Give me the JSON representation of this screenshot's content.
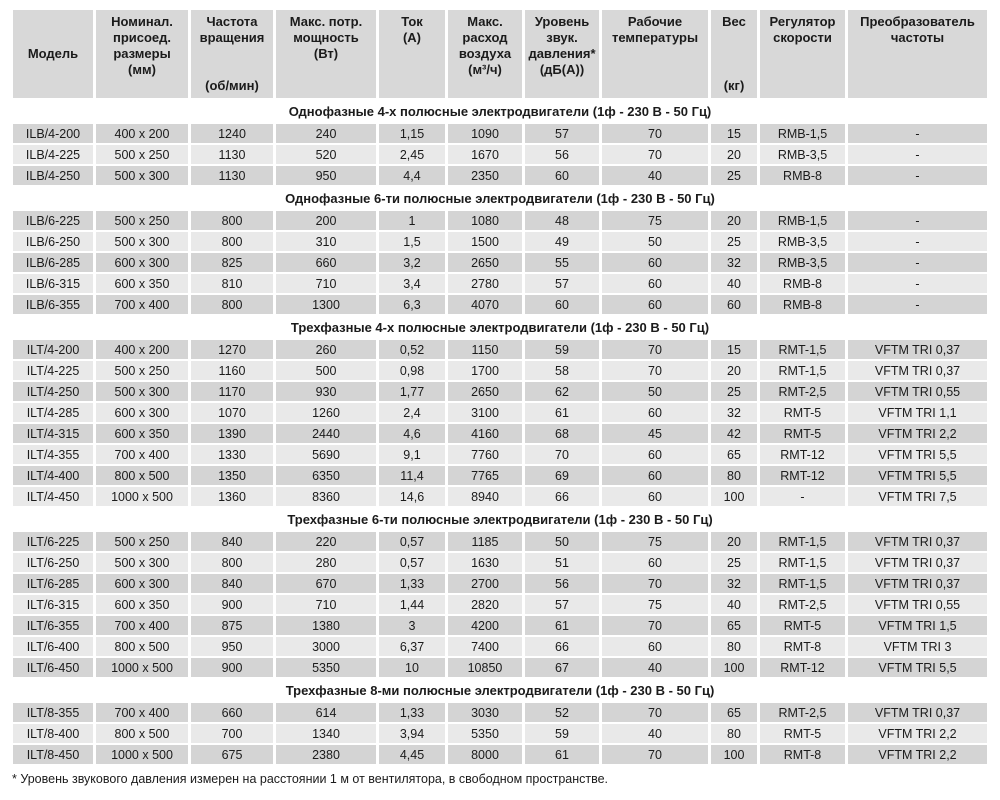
{
  "table": {
    "headers": [
      {
        "label": "Модель",
        "unit": ""
      },
      {
        "label": "Номинал. присоед. размеры",
        "unit": "(мм)"
      },
      {
        "label": "Частота вращения",
        "unit": "(об/мин)"
      },
      {
        "label": "Макс. потр. мощность",
        "unit": "(Вт)"
      },
      {
        "label": "Ток",
        "unit": "(А)"
      },
      {
        "label": "Макс. расход воздуха",
        "unit": "(м³/ч)"
      },
      {
        "label": "Уровень звук. давления*",
        "unit": "(дБ(А))"
      },
      {
        "label": "Рабочие температуры",
        "unit": ""
      },
      {
        "label": "Вес",
        "unit": "(кг)"
      },
      {
        "label": "Регулятор скорости",
        "unit": ""
      },
      {
        "label": "Преобразователь частоты",
        "unit": ""
      }
    ],
    "sections": [
      {
        "title": "Однофазные 4-х полюсные электродвигатели (1ф - 230 В - 50 Гц)",
        "rows": [
          [
            "ILB/4-200",
            "400 x 200",
            "1240",
            "240",
            "1,15",
            "1090",
            "57",
            "70",
            "15",
            "RMB-1,5",
            "-"
          ],
          [
            "ILB/4-225",
            "500 x 250",
            "1130",
            "520",
            "2,45",
            "1670",
            "56",
            "70",
            "20",
            "RMB-3,5",
            "-"
          ],
          [
            "ILB/4-250",
            "500 x 300",
            "1130",
            "950",
            "4,4",
            "2350",
            "60",
            "40",
            "25",
            "RMB-8",
            "-"
          ]
        ]
      },
      {
        "title": "Однофазные 6-ти полюсные электродвигатели (1ф - 230 В - 50 Гц)",
        "rows": [
          [
            "ILB/6-225",
            "500 x 250",
            "800",
            "200",
            "1",
            "1080",
            "48",
            "75",
            "20",
            "RMB-1,5",
            "-"
          ],
          [
            "ILB/6-250",
            "500 x 300",
            "800",
            "310",
            "1,5",
            "1500",
            "49",
            "50",
            "25",
            "RMB-3,5",
            "-"
          ],
          [
            "ILB/6-285",
            "600 x 300",
            "825",
            "660",
            "3,2",
            "2650",
            "55",
            "60",
            "32",
            "RMB-3,5",
            "-"
          ],
          [
            "ILB/6-315",
            "600 x 350",
            "810",
            "710",
            "3,4",
            "2780",
            "57",
            "60",
            "40",
            "RMB-8",
            "-"
          ],
          [
            "ILB/6-355",
            "700 x 400",
            "800",
            "1300",
            "6,3",
            "4070",
            "60",
            "60",
            "60",
            "RMB-8",
            "-"
          ]
        ]
      },
      {
        "title": "Трехфазные 4-х полюсные электродвигатели (1ф - 230 В - 50 Гц)",
        "rows": [
          [
            "ILT/4-200",
            "400 x 200",
            "1270",
            "260",
            "0,52",
            "1150",
            "59",
            "70",
            "15",
            "RMT-1,5",
            "VFTM TRI 0,37"
          ],
          [
            "ILT/4-225",
            "500 x 250",
            "1160",
            "500",
            "0,98",
            "1700",
            "58",
            "70",
            "20",
            "RMT-1,5",
            "VFTM TRI 0,37"
          ],
          [
            "ILT/4-250",
            "500 x 300",
            "1170",
            "930",
            "1,77",
            "2650",
            "62",
            "50",
            "25",
            "RMT-2,5",
            "VFTM TRI 0,55"
          ],
          [
            "ILT/4-285",
            "600 x 300",
            "1070",
            "1260",
            "2,4",
            "3100",
            "61",
            "60",
            "32",
            "RMT-5",
            "VFTM TRI 1,1"
          ],
          [
            "ILT/4-315",
            "600 x 350",
            "1390",
            "2440",
            "4,6",
            "4160",
            "68",
            "45",
            "42",
            "RMT-5",
            "VFTM TRI 2,2"
          ],
          [
            "ILT/4-355",
            "700 x 400",
            "1330",
            "5690",
            "9,1",
            "7760",
            "70",
            "60",
            "65",
            "RMT-12",
            "VFTM TRI 5,5"
          ],
          [
            "ILT/4-400",
            "800 x 500",
            "1350",
            "6350",
            "11,4",
            "7765",
            "69",
            "60",
            "80",
            "RMT-12",
            "VFTM TRI 5,5"
          ],
          [
            "ILT/4-450",
            "1000 x 500",
            "1360",
            "8360",
            "14,6",
            "8940",
            "66",
            "60",
            "100",
            "-",
            "VFTM TRI 7,5"
          ]
        ]
      },
      {
        "title": "Трехфазные 6-ти полюсные электродвигатели (1ф - 230 В - 50 Гц)",
        "rows": [
          [
            "ILT/6-225",
            "500 x 250",
            "840",
            "220",
            "0,57",
            "1185",
            "50",
            "75",
            "20",
            "RMT-1,5",
            "VFTM TRI 0,37"
          ],
          [
            "ILT/6-250",
            "500 x 300",
            "800",
            "280",
            "0,57",
            "1630",
            "51",
            "60",
            "25",
            "RMT-1,5",
            "VFTM TRI 0,37"
          ],
          [
            "ILT/6-285",
            "600 x 300",
            "840",
            "670",
            "1,33",
            "2700",
            "56",
            "70",
            "32",
            "RMT-1,5",
            "VFTM TRI 0,37"
          ],
          [
            "ILT/6-315",
            "600 x 350",
            "900",
            "710",
            "1,44",
            "2820",
            "57",
            "75",
            "40",
            "RMT-2,5",
            "VFTM TRI 0,55"
          ],
          [
            "ILT/6-355",
            "700 x 400",
            "875",
            "1380",
            "3",
            "4200",
            "61",
            "70",
            "65",
            "RMT-5",
            "VFTM TRI 1,5"
          ],
          [
            "ILT/6-400",
            "800 x 500",
            "950",
            "3000",
            "6,37",
            "7400",
            "66",
            "60",
            "80",
            "RMT-8",
            "VFTM TRI 3"
          ],
          [
            "ILT/6-450",
            "1000 x 500",
            "900",
            "5350",
            "10",
            "10850",
            "67",
            "40",
            "100",
            "RMT-12",
            "VFTM TRI 5,5"
          ]
        ]
      },
      {
        "title": "Трехфазные 8-ми полюсные электродвигатели (1ф - 230 В - 50 Гц)",
        "rows": [
          [
            "ILT/8-355",
            "700 x 400",
            "660",
            "614",
            "1,33",
            "3030",
            "52",
            "70",
            "65",
            "RMT-2,5",
            "VFTM TRI 0,37"
          ],
          [
            "ILT/8-400",
            "800 x 500",
            "700",
            "1340",
            "3,94",
            "5350",
            "59",
            "40",
            "80",
            "RMT-5",
            "VFTM TRI 2,2"
          ],
          [
            "ILT/8-450",
            "1000 x 500",
            "675",
            "2380",
            "4,45",
            "8000",
            "61",
            "70",
            "100",
            "RMT-8",
            "VFTM TRI 2,2"
          ]
        ]
      }
    ],
    "footnote": "* Уровень звукового давления измерен на расстоянии 1 м от вентилятора, в свободном пространстве.",
    "colors": {
      "header_bg": "#d8d8d8",
      "row_dark_bg": "#d4d4d4",
      "row_light_bg": "#e9e9e9",
      "text": "#1b1b1b",
      "gap": "#ffffff"
    }
  }
}
